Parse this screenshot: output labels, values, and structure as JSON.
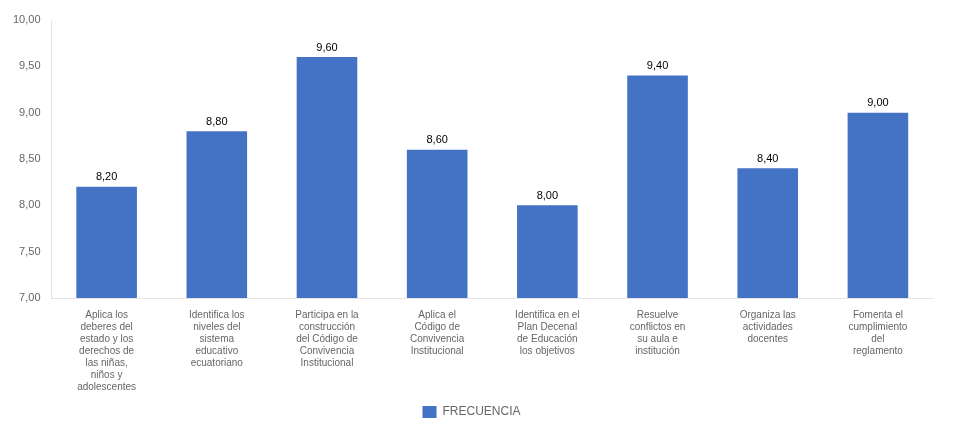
{
  "chart_data": {
    "type": "bar",
    "categories": [
      "Aplica los\ndeberes del\nestado y los\nderechos de\nlas niñas,\nniños y\nadolescentes",
      "Identifica los\nniveles del\nsistema\neducativo\necuatoriano",
      "Participa en la\nconstrucción\ndel Código de\nConvivencia\nInstitucional",
      "Aplica el\nCódigo de\nConvivencia\nInstitucional",
      "Identifica en el\nPlan Decenal\nde Educación\nlos objetivos",
      "Resuelve\nconflictos en\nsu aula e\ninstitución",
      "Organiza las\nactividades\ndocentes",
      "Fomenta el\ncumplimiento\ndel\nreglamento"
    ],
    "series": [
      {
        "name": "FRECUENCIA",
        "color": "#4472C4",
        "values": [
          8.2,
          8.8,
          9.6,
          8.6,
          8.0,
          9.4,
          8.4,
          9.0
        ],
        "value_labels": [
          "8,20",
          "8,80",
          "9,60",
          "8,60",
          "8,00",
          "9,40",
          "8,40",
          "9,00"
        ]
      }
    ],
    "ylim": [
      7.0,
      10.0
    ],
    "yticks": [
      {
        "value": 7.0,
        "label": "7,00"
      },
      {
        "value": 7.5,
        "label": "7,50"
      },
      {
        "value": 8.0,
        "label": "8,00"
      },
      {
        "value": 8.5,
        "label": "8,50"
      },
      {
        "value": 9.0,
        "label": "9,00"
      },
      {
        "value": 9.5,
        "label": "9,50"
      },
      {
        "value": 10.0,
        "label": "10,00"
      }
    ],
    "grid": false,
    "legend": "bottom",
    "data_labels": true
  }
}
